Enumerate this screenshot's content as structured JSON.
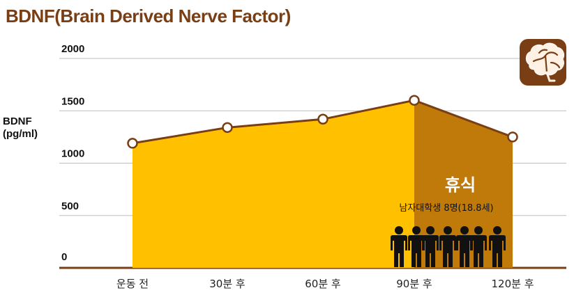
{
  "title": "BDNF(Brain Derived Nerve Factor)",
  "ylabel_line1": "BDNF",
  "ylabel_line2": "(pg/ml)",
  "rest_label": "휴식",
  "group_label": "남자대학생 8명(18.8세)",
  "colors": {
    "title": "#7a3e14",
    "area": "#ffc000",
    "rest_area": "#bf7a0a",
    "line": "#7a3e14",
    "axis": "#7a3e14",
    "icon": "#7a3e14",
    "people": "#111111"
  },
  "icons": [
    "brain-icon",
    "person-icon"
  ],
  "chart_data": {
    "type": "area",
    "categories": [
      "운동 전",
      "30분 후",
      "60분 후",
      "90분 후",
      "120분 후"
    ],
    "values": [
      1190,
      1340,
      1420,
      1600,
      1250
    ],
    "ylim": [
      0,
      2000
    ],
    "yticks": [
      0,
      500,
      1000,
      1500,
      2000
    ],
    "grid": true,
    "xlabel": "",
    "ylabel": "BDNF (pg/ml)",
    "annotations": [
      "휴식",
      "남자대학생 8명(18.8세)"
    ],
    "shaded_region": {
      "from": "90분 후",
      "to": "120분 후",
      "label": "휴식"
    }
  }
}
